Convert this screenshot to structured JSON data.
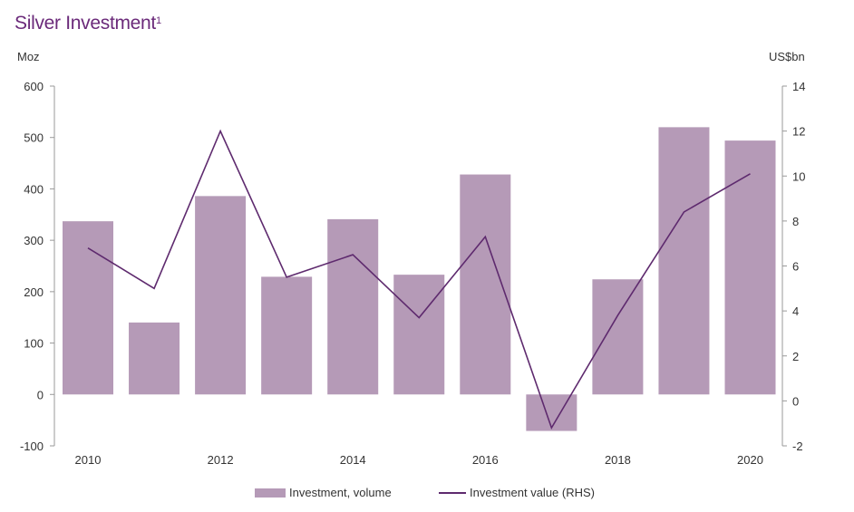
{
  "title": "Silver Investment",
  "title_footnote": "1",
  "left_unit": "Moz",
  "right_unit": "US$bn",
  "colors": {
    "title": "#6b2a7a",
    "bar": "#b59ab7",
    "line": "#5e2a6e",
    "axis": "#999999"
  },
  "legend": {
    "bar_label": "Investment, volume",
    "line_label": "Investment value (RHS)"
  },
  "chart_data": {
    "type": "bar",
    "title": "Silver Investment",
    "categories": [
      2010,
      2011,
      2012,
      2013,
      2014,
      2015,
      2016,
      2017,
      2018,
      2019,
      2020
    ],
    "x_tick_labels": [
      "2010",
      "2012",
      "2014",
      "2016",
      "2018",
      "2020"
    ],
    "series": [
      {
        "name": "Investment, volume",
        "type": "bar",
        "axis": "left",
        "values": [
          337,
          140,
          386,
          229,
          341,
          233,
          428,
          -71,
          224,
          520,
          494
        ]
      },
      {
        "name": "Investment value (RHS)",
        "type": "line",
        "axis": "right",
        "values": [
          6.8,
          5.0,
          12.0,
          5.5,
          6.5,
          3.7,
          7.3,
          -1.2,
          3.8,
          8.4,
          10.1
        ]
      }
    ],
    "ylabel": "Moz",
    "y2label": "US$bn",
    "ylim": [
      -100,
      600
    ],
    "yticks": [
      -100,
      0,
      100,
      200,
      300,
      400,
      500,
      600
    ],
    "y2lim": [
      -2,
      14
    ],
    "y2ticks": [
      -2,
      0,
      2,
      4,
      6,
      8,
      10,
      12,
      14
    ],
    "grid": false,
    "legend_position": "bottom"
  }
}
